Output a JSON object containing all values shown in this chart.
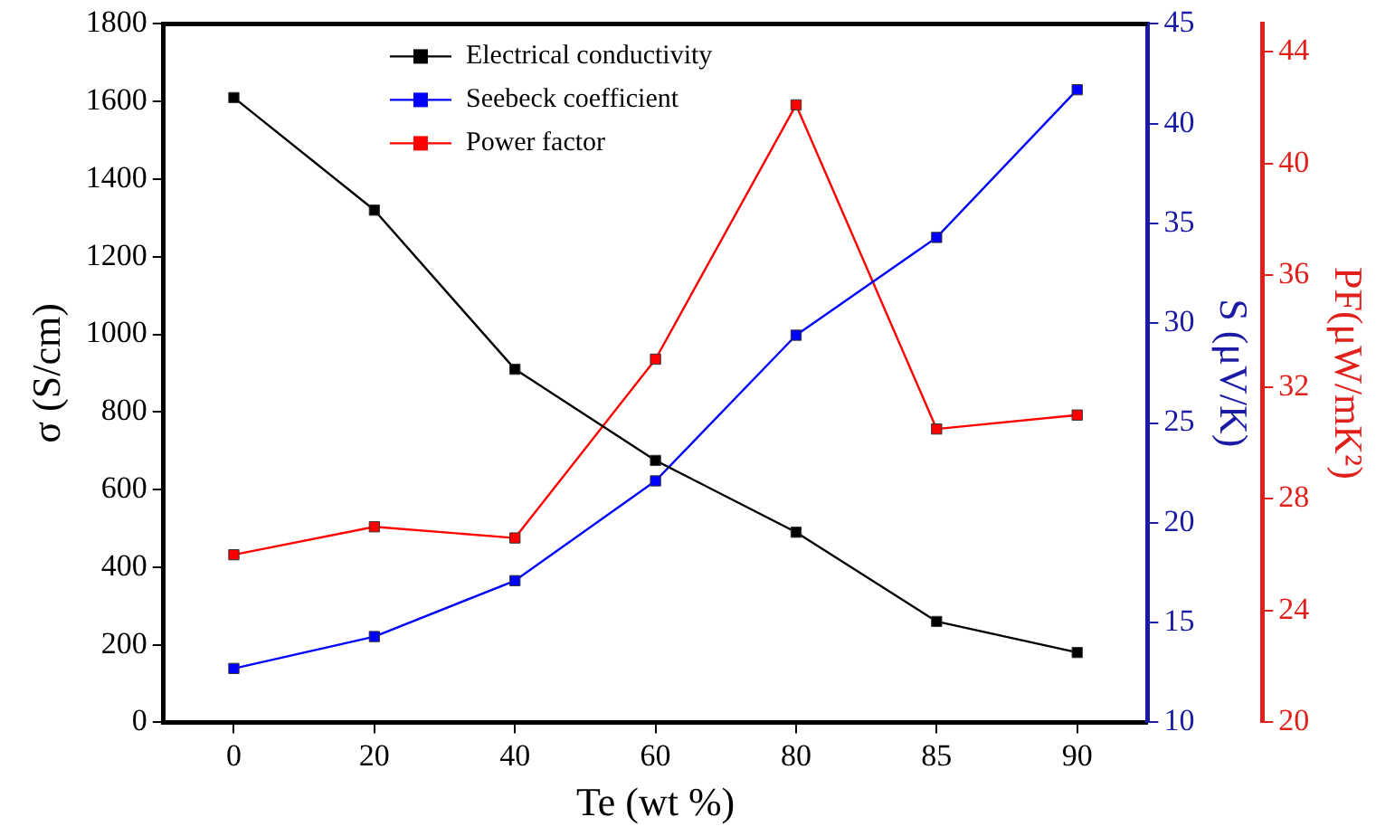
{
  "chart_data": {
    "type": "line",
    "xlabel": "Te (wt %)",
    "ylabel": "σ (S/cm)",
    "y2label": "S (μV/K)",
    "y3label": "PF(μW/mK²)",
    "categories": [
      "0",
      "20",
      "40",
      "60",
      "80",
      "85",
      "90"
    ],
    "ylim": [
      0,
      1800
    ],
    "yticks": [
      0,
      200,
      400,
      600,
      800,
      1000,
      1200,
      1400,
      1600,
      1800
    ],
    "y2lim": [
      10,
      45
    ],
    "y2ticks": [
      10,
      15,
      20,
      25,
      30,
      35,
      40,
      45
    ],
    "y3lim": [
      20,
      45
    ],
    "y3ticks": [
      20,
      24,
      28,
      32,
      36,
      40,
      44
    ],
    "series": [
      {
        "name": "Electrical conductivity",
        "color": "#000000",
        "values": [
          1610,
          1320,
          910,
          675,
          490,
          260,
          180
        ]
      },
      {
        "name": "Seebeck coefficient",
        "color": "#0000ff",
        "axis": "y2",
        "values": [
          12.7,
          14.3,
          17.1,
          22.1,
          29.4,
          34.3,
          41.7
        ]
      },
      {
        "name": "Power factor",
        "color": "#ff0000",
        "axis": "y3",
        "values": [
          26.0,
          27.0,
          26.6,
          33.0,
          42.1,
          30.5,
          31.0
        ]
      }
    ],
    "marker": "square",
    "grid": false,
    "legend": "top"
  }
}
